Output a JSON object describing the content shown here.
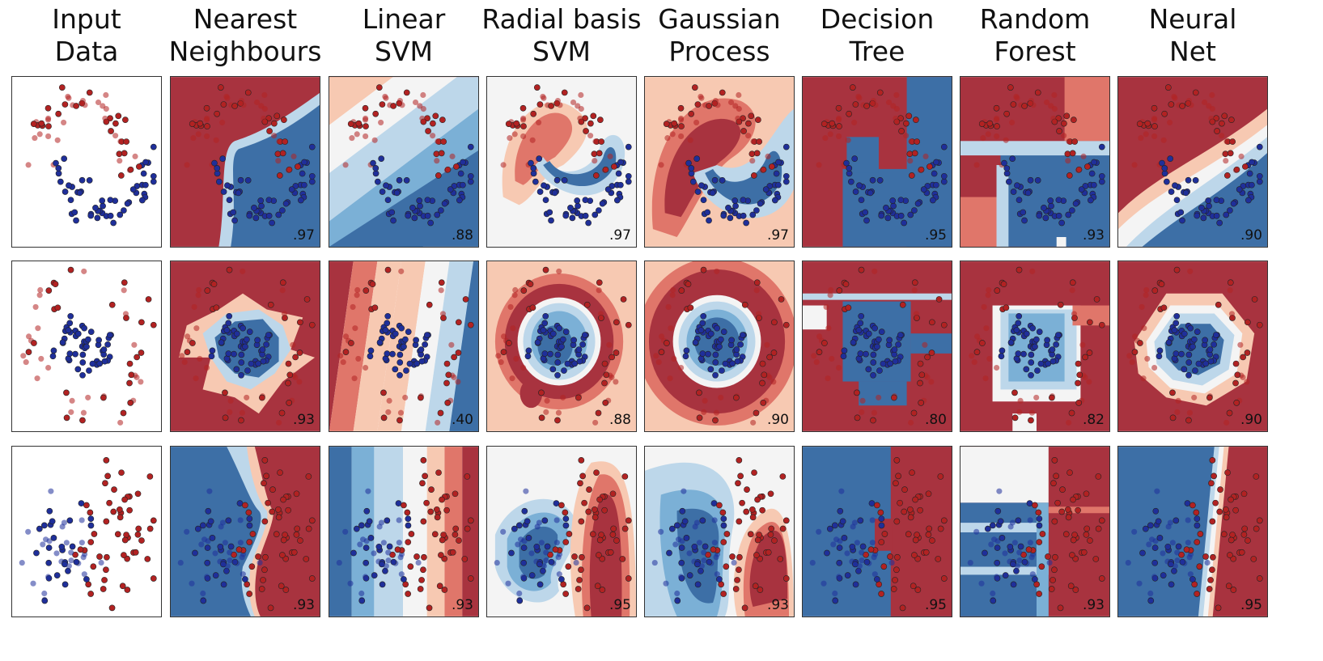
{
  "headers": [
    [
      "Input",
      "Data"
    ],
    [
      "Nearest",
      "Neighbours"
    ],
    [
      "Linear",
      "SVM"
    ],
    [
      "Radial basis",
      "SVM"
    ],
    [
      "Gaussian",
      "Process"
    ],
    [
      "Decision",
      "Tree"
    ],
    [
      "Random",
      "Forest"
    ],
    [
      "Neural",
      "Net"
    ]
  ],
  "colors": {
    "class_red": "#b22222",
    "class_blue": "#1f2f9a",
    "region_red_dark": "#a8333f",
    "region_red_mid": "#e0766a",
    "region_red_light": "#f7c9b2",
    "neutral": "#f4f4f4",
    "region_blue_light": "#bdd7ea",
    "region_blue_mid": "#7bb0d6",
    "region_blue_dark": "#3d6fa6"
  },
  "chart_data": [
    {
      "type": "scatter",
      "dataset": "moons",
      "scores": {
        "Nearest Neighbours": ".97",
        "Linear SVM": ".88",
        "Radial basis SVM": ".97",
        "Gaussian Process": ".97",
        "Decision Tree": ".95",
        "Random Forest": ".93",
        "Neural Net": ".90"
      }
    },
    {
      "type": "scatter",
      "dataset": "circles",
      "scores": {
        "Nearest Neighbours": ".93",
        "Linear SVM": ".40",
        "Radial basis SVM": ".88",
        "Gaussian Process": ".90",
        "Decision Tree": ".80",
        "Random Forest": ".82",
        "Neural Net": ".90"
      }
    },
    {
      "type": "scatter",
      "dataset": "linearly separable",
      "scores": {
        "Nearest Neighbours": ".93",
        "Linear SVM": ".93",
        "Radial basis SVM": ".95",
        "Gaussian Process": ".93",
        "Decision Tree": ".95",
        "Random Forest": ".93",
        "Neural Net": ".95"
      }
    }
  ]
}
